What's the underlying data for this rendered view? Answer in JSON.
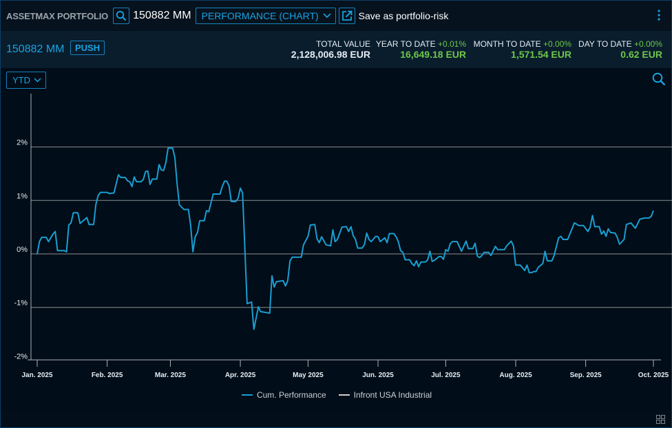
{
  "topbar": {
    "app_title": "ASSETMAX PORTFOLIO",
    "portfolio_id": "150882 MM",
    "view_select": "PERFORMANCE (CHART)",
    "save_label": "Save as portfolio-risk",
    "icons": [
      "search-icon",
      "chevron-down-icon",
      "external-link-icon",
      "kebab-menu-icon"
    ]
  },
  "header": {
    "portfolio_id": "150882 MM",
    "push_label": "PUSH",
    "stats": [
      {
        "label": "TOTAL VALUE",
        "pct": "",
        "value": "2,128,006.98 EUR"
      },
      {
        "label": "YEAR TO DATE",
        "pct": "+0.01%",
        "value": "16,649.18 EUR"
      },
      {
        "label": "MONTH TO DATE",
        "pct": "+0.00%",
        "value": "1,571.54 EUR"
      },
      {
        "label": "DAY TO DATE",
        "pct": "+0.00%",
        "value": "0.62 EUR"
      }
    ]
  },
  "controls": {
    "period": "YTD"
  },
  "colors": {
    "accent": "#1aa3e0",
    "positive": "#6ec84a",
    "series": "#1a9fd1",
    "benchmark": "#d0d0d0"
  },
  "chart_data": {
    "type": "line",
    "ylim": [
      -2,
      2
    ],
    "yticks": [
      "2%",
      "1%",
      "0%",
      "-1%",
      "-2%"
    ],
    "ytick_values": [
      2,
      1,
      0,
      -1,
      -2
    ],
    "xticks": [
      "Jan. 2025",
      "Feb. 2025",
      "Mar. 2025",
      "Apr. 2025",
      "May 2025",
      "Jun. 2025",
      "Jul. 2025",
      "Aug. 2025",
      "Sep. 2025",
      "Oct. 2025"
    ],
    "xtick_dates": [
      "2025-01-01",
      "2025-02-01",
      "2025-03-01",
      "2025-04-01",
      "2025-05-01",
      "2025-06-01",
      "2025-07-01",
      "2025-08-01",
      "2025-09-01",
      "2025-10-01"
    ],
    "grid": true,
    "legend_position": "bottom",
    "legend": [
      "Cum. Performance",
      "Infront USA Industrial"
    ],
    "series": [
      {
        "name": "Cum. Performance",
        "points": [
          [
            "2025-01-01",
            0.0
          ],
          [
            "2025-01-02",
            0.23
          ],
          [
            "2025-01-03",
            0.31
          ],
          [
            "2025-01-05",
            0.31
          ],
          [
            "2025-01-06",
            0.23
          ],
          [
            "2025-01-08",
            0.37
          ],
          [
            "2025-01-09",
            0.42
          ],
          [
            "2025-01-10",
            0.06
          ],
          [
            "2025-01-13",
            0.06
          ],
          [
            "2025-01-14",
            0.04
          ],
          [
            "2025-01-15",
            0.54
          ],
          [
            "2025-01-16",
            0.58
          ],
          [
            "2025-01-17",
            0.77
          ],
          [
            "2025-01-19",
            0.77
          ],
          [
            "2025-01-20",
            0.57
          ],
          [
            "2025-01-23",
            0.68
          ],
          [
            "2025-01-24",
            0.55
          ],
          [
            "2025-01-26",
            0.55
          ],
          [
            "2025-01-27",
            0.92
          ],
          [
            "2025-01-28",
            1.09
          ],
          [
            "2025-01-29",
            1.15
          ],
          [
            "2025-02-01",
            1.15
          ],
          [
            "2025-02-02",
            1.13
          ],
          [
            "2025-02-04",
            1.14
          ],
          [
            "2025-02-06",
            1.48
          ],
          [
            "2025-02-07",
            1.43
          ],
          [
            "2025-02-09",
            1.43
          ],
          [
            "2025-02-10",
            1.37
          ],
          [
            "2025-02-11",
            1.35
          ],
          [
            "2025-02-12",
            1.26
          ],
          [
            "2025-02-13",
            1.44
          ],
          [
            "2025-02-14",
            1.35
          ],
          [
            "2025-02-16",
            1.35
          ],
          [
            "2025-02-17",
            1.39
          ],
          [
            "2025-02-18",
            1.54
          ],
          [
            "2025-02-19",
            1.55
          ],
          [
            "2025-02-20",
            1.3
          ],
          [
            "2025-02-21",
            1.4
          ],
          [
            "2025-02-23",
            1.4
          ],
          [
            "2025-02-24",
            1.67
          ],
          [
            "2025-02-25",
            1.57
          ],
          [
            "2025-02-26",
            1.56
          ],
          [
            "2025-02-27",
            1.71
          ],
          [
            "2025-02-28",
            1.98
          ],
          [
            "2025-03-02",
            1.98
          ],
          [
            "2025-03-03",
            1.8
          ],
          [
            "2025-03-04",
            1.3
          ],
          [
            "2025-03-05",
            0.92
          ],
          [
            "2025-03-07",
            0.83
          ],
          [
            "2025-03-09",
            0.83
          ],
          [
            "2025-03-10",
            0.53
          ],
          [
            "2025-03-11",
            0.04
          ],
          [
            "2025-03-12",
            0.32
          ],
          [
            "2025-03-13",
            0.4
          ],
          [
            "2025-03-14",
            0.62
          ],
          [
            "2025-03-16",
            0.62
          ],
          [
            "2025-03-17",
            0.81
          ],
          [
            "2025-03-18",
            0.79
          ],
          [
            "2025-03-20",
            1.12
          ],
          [
            "2025-03-23",
            1.12
          ],
          [
            "2025-03-24",
            1.26
          ],
          [
            "2025-03-25",
            1.36
          ],
          [
            "2025-03-26",
            1.36
          ],
          [
            "2025-03-27",
            1.27
          ],
          [
            "2025-03-28",
            0.98
          ],
          [
            "2025-03-30",
            0.98
          ],
          [
            "2025-03-31",
            1.04
          ],
          [
            "2025-04-01",
            1.23
          ],
          [
            "2025-04-02",
            1.14
          ],
          [
            "2025-04-04",
            -0.93
          ],
          [
            "2025-04-06",
            -0.9
          ],
          [
            "2025-04-07",
            -1.41
          ],
          [
            "2025-04-09",
            -0.99
          ],
          [
            "2025-04-10",
            -1.08
          ],
          [
            "2025-04-13",
            -1.1
          ],
          [
            "2025-04-14",
            -1.11
          ],
          [
            "2025-04-15",
            -0.41
          ],
          [
            "2025-04-16",
            -0.62
          ],
          [
            "2025-04-17",
            -0.52
          ],
          [
            "2025-04-20",
            -0.5
          ],
          [
            "2025-04-21",
            -0.6
          ],
          [
            "2025-04-22",
            -0.5
          ],
          [
            "2025-04-23",
            -0.13
          ],
          [
            "2025-04-24",
            -0.06
          ],
          [
            "2025-04-28",
            -0.06
          ],
          [
            "2025-04-29",
            0.17
          ],
          [
            "2025-05-01",
            0.33
          ],
          [
            "2025-05-02",
            0.54
          ],
          [
            "2025-05-04",
            0.55
          ],
          [
            "2025-05-05",
            0.28
          ],
          [
            "2025-05-06",
            0.21
          ],
          [
            "2025-05-07",
            0.32
          ],
          [
            "2025-05-09",
            0.17
          ],
          [
            "2025-05-11",
            0.15
          ],
          [
            "2025-05-12",
            0.45
          ],
          [
            "2025-05-13",
            0.23
          ],
          [
            "2025-05-14",
            0.27
          ],
          [
            "2025-05-16",
            0.5
          ],
          [
            "2025-05-18",
            0.51
          ],
          [
            "2025-05-19",
            0.42
          ],
          [
            "2025-05-20",
            0.51
          ],
          [
            "2025-05-21",
            0.34
          ],
          [
            "2025-05-22",
            0.27
          ],
          [
            "2025-05-23",
            0.11
          ],
          [
            "2025-05-25",
            0.11
          ],
          [
            "2025-05-26",
            0.18
          ],
          [
            "2025-05-27",
            0.39
          ],
          [
            "2025-05-28",
            0.27
          ],
          [
            "2025-05-29",
            0.23
          ],
          [
            "2025-05-31",
            0.33
          ],
          [
            "2025-06-01",
            0.32
          ],
          [
            "2025-06-02",
            0.23
          ],
          [
            "2025-06-04",
            0.3
          ],
          [
            "2025-06-05",
            0.21
          ],
          [
            "2025-06-06",
            0.38
          ],
          [
            "2025-06-08",
            0.38
          ],
          [
            "2025-06-09",
            0.32
          ],
          [
            "2025-06-10",
            0.23
          ],
          [
            "2025-06-11",
            0.06
          ],
          [
            "2025-06-12",
            0.03
          ],
          [
            "2025-06-13",
            -0.11
          ],
          [
            "2025-06-15",
            -0.11
          ],
          [
            "2025-06-16",
            -0.18
          ],
          [
            "2025-06-17",
            -0.22
          ],
          [
            "2025-06-18",
            -0.13
          ],
          [
            "2025-06-19",
            -0.24
          ],
          [
            "2025-06-20",
            -0.15
          ],
          [
            "2025-06-22",
            -0.15
          ],
          [
            "2025-06-23",
            -0.11
          ],
          [
            "2025-06-24",
            0.05
          ],
          [
            "2025-06-25",
            -0.14
          ],
          [
            "2025-06-26",
            -0.12
          ],
          [
            "2025-06-28",
            -0.05
          ],
          [
            "2025-06-29",
            -0.05
          ],
          [
            "2025-06-30",
            -0.1
          ],
          [
            "2025-07-01",
            0.08
          ],
          [
            "2025-07-02",
            0.05
          ],
          [
            "2025-07-03",
            0.19
          ],
          [
            "2025-07-04",
            0.23
          ],
          [
            "2025-07-06",
            0.23
          ],
          [
            "2025-07-08",
            0.05
          ],
          [
            "2025-07-10",
            0.24
          ],
          [
            "2025-07-11",
            0.1
          ],
          [
            "2025-07-13",
            0.1
          ],
          [
            "2025-07-14",
            0.2
          ],
          [
            "2025-07-15",
            -0.04
          ],
          [
            "2025-07-16",
            -0.07
          ],
          [
            "2025-07-17",
            -0.03
          ],
          [
            "2025-07-18",
            0.03
          ],
          [
            "2025-07-20",
            0.03
          ],
          [
            "2025-07-21",
            -0.03
          ],
          [
            "2025-07-23",
            0.14
          ],
          [
            "2025-07-24",
            0.08
          ],
          [
            "2025-07-27",
            0.08
          ],
          [
            "2025-07-28",
            0.15
          ],
          [
            "2025-07-30",
            0.24
          ],
          [
            "2025-07-31",
            0.15
          ],
          [
            "2025-08-01",
            -0.21
          ],
          [
            "2025-08-03",
            -0.21
          ],
          [
            "2025-08-05",
            -0.31
          ],
          [
            "2025-08-06",
            -0.21
          ],
          [
            "2025-08-07",
            -0.35
          ],
          [
            "2025-08-08",
            -0.35
          ],
          [
            "2025-08-09",
            -0.33
          ],
          [
            "2025-08-10",
            -0.33
          ],
          [
            "2025-08-11",
            -0.25
          ],
          [
            "2025-08-13",
            -0.18
          ],
          [
            "2025-08-14",
            0.05
          ],
          [
            "2025-08-15",
            -0.13
          ],
          [
            "2025-08-17",
            -0.13
          ],
          [
            "2025-08-18",
            -0.03
          ],
          [
            "2025-08-20",
            0.3
          ],
          [
            "2025-08-21",
            0.33
          ],
          [
            "2025-08-22",
            0.27
          ],
          [
            "2025-08-24",
            0.27
          ],
          [
            "2025-08-27",
            0.58
          ],
          [
            "2025-08-29",
            0.53
          ],
          [
            "2025-08-31",
            0.53
          ],
          [
            "2025-09-02",
            0.42
          ],
          [
            "2025-09-03",
            0.5
          ],
          [
            "2025-09-04",
            0.72
          ],
          [
            "2025-09-05",
            0.51
          ],
          [
            "2025-09-07",
            0.51
          ],
          [
            "2025-09-08",
            0.37
          ],
          [
            "2025-09-09",
            0.43
          ],
          [
            "2025-09-10",
            0.33
          ],
          [
            "2025-09-11",
            0.47
          ],
          [
            "2025-09-12",
            0.4
          ],
          [
            "2025-09-14",
            0.39
          ],
          [
            "2025-09-15",
            0.31
          ],
          [
            "2025-09-16",
            0.18
          ],
          [
            "2025-09-18",
            0.27
          ],
          [
            "2025-09-19",
            0.55
          ],
          [
            "2025-09-21",
            0.58
          ],
          [
            "2025-09-23",
            0.48
          ],
          [
            "2025-09-25",
            0.65
          ],
          [
            "2025-09-27",
            0.67
          ],
          [
            "2025-09-29",
            0.67
          ],
          [
            "2025-09-30",
            0.7
          ],
          [
            "2025-10-01",
            0.81
          ]
        ]
      },
      {
        "name": "Infront USA Industrial",
        "points": []
      }
    ]
  }
}
